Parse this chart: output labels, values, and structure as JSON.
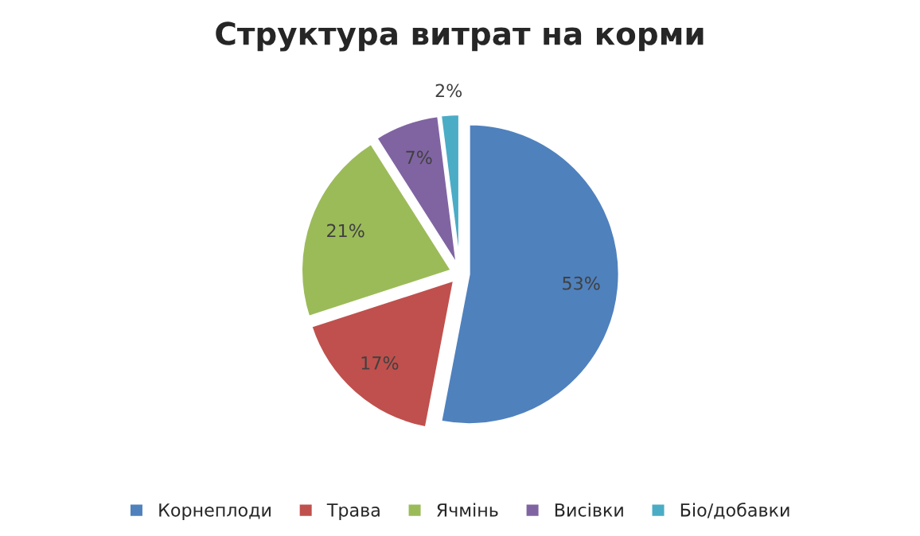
{
  "chart_data": {
    "type": "pie",
    "title": "Структура витрат на корми",
    "categories": [
      "Корнеплоди",
      "Трава",
      "Ячмінь",
      "Висівки",
      "Біо/добавки"
    ],
    "values": [
      53,
      17,
      21,
      7,
      2
    ],
    "value_labels": [
      "53%",
      "17%",
      "21%",
      "7%",
      "2%"
    ],
    "colors": [
      "#4f81bd",
      "#c0504d",
      "#9bbb59",
      "#8064a2",
      "#4bacc6"
    ],
    "legend": "bottom"
  }
}
